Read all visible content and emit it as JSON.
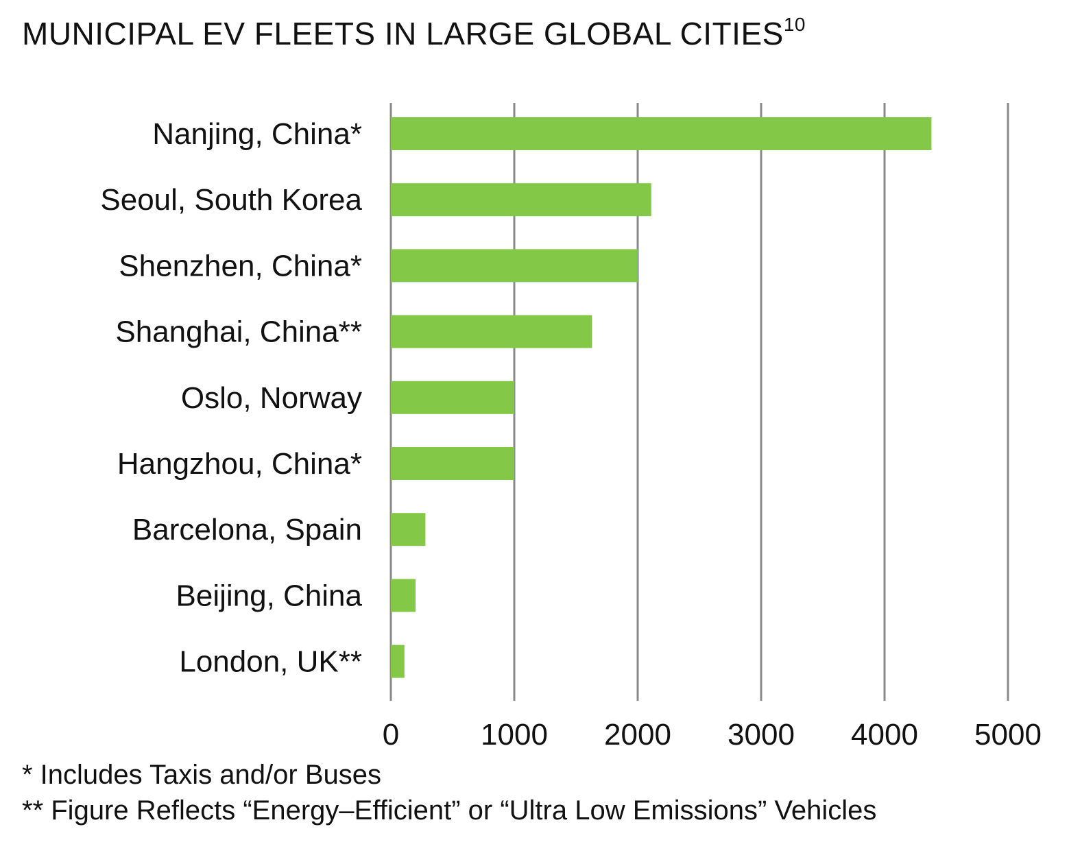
{
  "title": {
    "text": "MUNICIPAL EV FLEETS IN LARGE GLOBAL CITIES",
    "superscript": "10"
  },
  "footnotes": [
    " * Includes Taxis and/or Buses",
    "** Figure Reflects “Energy–Efficient” or “Ultra Low Emissions” Vehicles"
  ],
  "chart_data": {
    "type": "bar",
    "orientation": "horizontal",
    "title": "MUNICIPAL EV FLEETS IN LARGE GLOBAL CITIES",
    "categories": [
      "Nanjing, China*",
      "Seoul, South Korea",
      "Shenzhen, China*",
      "Shanghai, China**",
      "Oslo, Norway",
      "Hangzhou, China*",
      "Barcelona, Spain",
      "Beijing, China",
      "London, UK**"
    ],
    "values": [
      4380,
      2110,
      2000,
      1630,
      1000,
      1000,
      280,
      200,
      110
    ],
    "xlim": [
      0,
      5000
    ],
    "xticks": [
      0,
      1000,
      2000,
      3000,
      4000,
      5000
    ],
    "xlabel": "",
    "ylabel": "",
    "grid": "vertical",
    "bar_color": "#83c846",
    "grid_color": "#8a8a8a"
  }
}
